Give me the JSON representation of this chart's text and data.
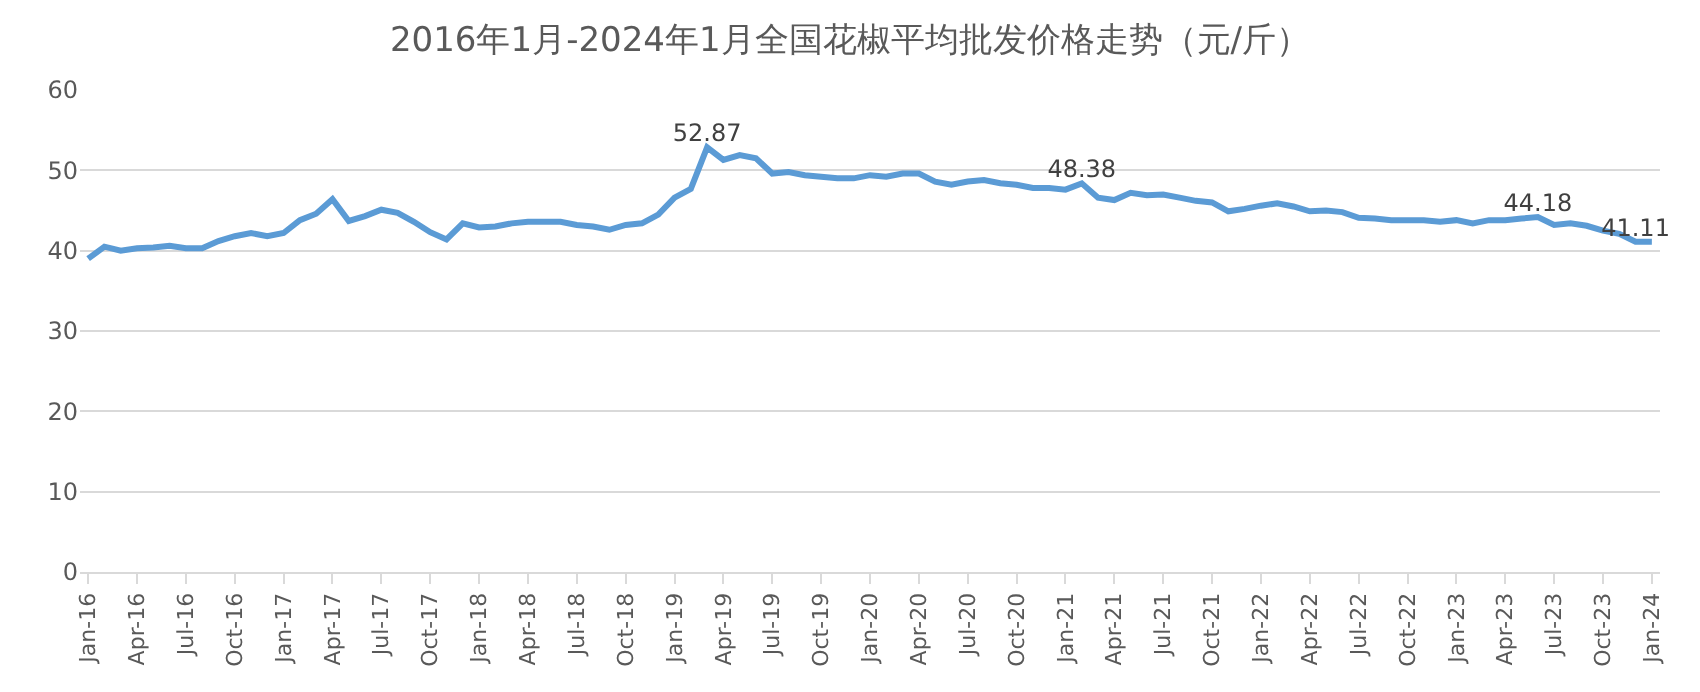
{
  "chart_data": {
    "type": "line",
    "title": "2016年1月-2024年1月全国花椒平均批发价格走势（元/斤）",
    "categories": [
      "Jan-16",
      null,
      null,
      "Apr-16",
      null,
      null,
      "Jul-16",
      null,
      null,
      "Oct-16",
      null,
      null,
      "Jan-17",
      null,
      null,
      "Apr-17",
      null,
      null,
      "Jul-17",
      null,
      null,
      "Oct-17",
      null,
      null,
      "Jan-18",
      null,
      null,
      "Apr-18",
      null,
      null,
      "Jul-18",
      null,
      null,
      "Oct-18",
      null,
      null,
      "Jan-19",
      null,
      null,
      "Apr-19",
      null,
      null,
      "Jul-19",
      null,
      null,
      "Oct-19",
      null,
      null,
      "Jan-20",
      null,
      null,
      "Apr-20",
      null,
      null,
      "Jul-20",
      null,
      null,
      "Oct-20",
      null,
      null,
      "Jan-21",
      null,
      null,
      "Apr-21",
      null,
      null,
      "Jul-21",
      null,
      null,
      "Oct-21",
      null,
      null,
      "Jan-22",
      null,
      null,
      "Apr-22",
      null,
      null,
      "Jul-22",
      null,
      null,
      "Oct-22",
      null,
      null,
      "Jan-23",
      null,
      null,
      "Apr-23",
      null,
      null,
      "Jul-23",
      null,
      null,
      "Oct-23",
      null,
      null,
      "Jan-24"
    ],
    "series": [
      {
        "color": "#5b9bd5",
        "values": [
          39.0,
          40.5,
          40.0,
          40.3,
          40.4,
          40.6,
          40.3,
          40.3,
          41.2,
          41.8,
          42.2,
          41.8,
          42.2,
          43.8,
          44.6,
          46.4,
          43.7,
          44.3,
          45.1,
          44.7,
          43.6,
          42.3,
          41.4,
          43.4,
          42.9,
          43.0,
          43.4,
          43.6,
          43.6,
          43.6,
          43.2,
          43.0,
          42.6,
          43.2,
          43.4,
          44.5,
          46.6,
          47.7,
          52.87,
          51.3,
          51.9,
          51.5,
          49.6,
          49.8,
          49.4,
          49.2,
          49.0,
          49.0,
          49.4,
          49.2,
          49.6,
          49.6,
          48.6,
          48.2,
          48.6,
          48.8,
          48.4,
          48.2,
          47.8,
          47.8,
          47.6,
          48.38,
          46.6,
          46.3,
          47.2,
          46.9,
          47.0,
          46.6,
          46.2,
          46.0,
          44.9,
          45.2,
          45.6,
          45.9,
          45.5,
          44.9,
          45.0,
          44.8,
          44.1,
          44.0,
          43.8,
          43.8,
          43.8,
          43.6,
          43.8,
          43.4,
          43.8,
          43.8,
          44.0,
          44.18,
          43.2,
          43.4,
          43.1,
          42.5,
          42.1,
          41.11,
          41.1
        ],
        "value_labels": [
          null,
          null,
          null,
          null,
          null,
          null,
          null,
          null,
          null,
          null,
          null,
          null,
          null,
          null,
          null,
          null,
          null,
          null,
          null,
          null,
          null,
          null,
          null,
          null,
          null,
          null,
          null,
          null,
          null,
          null,
          null,
          null,
          null,
          null,
          null,
          null,
          null,
          null,
          "52.87",
          null,
          null,
          null,
          null,
          null,
          null,
          null,
          null,
          null,
          null,
          null,
          null,
          null,
          null,
          null,
          null,
          null,
          null,
          null,
          null,
          null,
          null,
          "48.38",
          null,
          null,
          null,
          null,
          null,
          null,
          null,
          null,
          null,
          null,
          null,
          null,
          null,
          null,
          null,
          null,
          null,
          null,
          null,
          null,
          null,
          null,
          null,
          null,
          null,
          null,
          null,
          "44.18",
          null,
          null,
          null,
          null,
          null,
          "41.11",
          null
        ]
      }
    ],
    "ylim": [
      0,
      60
    ],
    "yticks": [
      0,
      10,
      20,
      30,
      40,
      50,
      60
    ],
    "grid": "y",
    "legend": false,
    "marker": "none",
    "line_style": "solid"
  }
}
